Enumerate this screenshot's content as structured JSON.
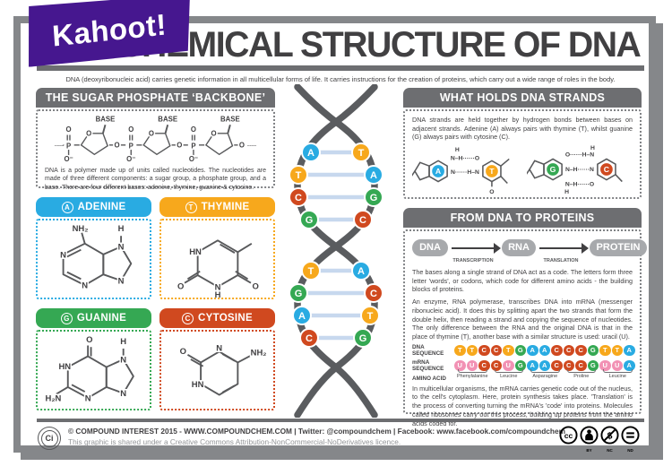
{
  "page": {
    "title": "THE CHEMICAL STRUCTURE OF DNA",
    "subtitle": "DNA (deoxyribonucleic acid) carries genetic information in all multicellular forms of life. It carries instructions for the creation of proteins, which carry out a wide range of roles in the body.",
    "kahoot_logo": "Kahoot!"
  },
  "colors": {
    "adenine": "#29ABE2",
    "thymine": "#F7A81C",
    "guanine": "#35A853",
    "cytosine": "#D0491F",
    "uracil": "#F291B4",
    "header_gray": "#6D6E71",
    "strand_gray": "#5A5C5F",
    "kahoot_purple": "#46178F"
  },
  "backbone": {
    "title": "THE SUGAR PHOSPHATE ‘BACKBONE’",
    "base_label": "BASE",
    "atom_p": "P",
    "atom_o": "O",
    "atom_o_minus": "O⁻",
    "dots": "·····",
    "description": "DNA is a polymer made up of units called nucleotides. The nucleotides are made of three different components: a sugar group, a phosphate group, and a base. There are four different bases: adenine, thymine, guanine & cytosine."
  },
  "bases": {
    "adenine": {
      "letter": "A",
      "name": "ADENINE",
      "atoms": [
        "NH₂",
        "N",
        "N",
        "N",
        "H",
        "N"
      ]
    },
    "thymine": {
      "letter": "T",
      "name": "THYMINE",
      "atoms": [
        "HN",
        "O",
        "N",
        "H",
        "O"
      ]
    },
    "guanine": {
      "letter": "G",
      "name": "GUANINE",
      "atoms": [
        "O",
        "HN",
        "H₂N",
        "N",
        "N",
        "H",
        "N"
      ]
    },
    "cytosine": {
      "letter": "C",
      "name": "CYTOSINE",
      "atoms": [
        "O",
        "N",
        "NH₂",
        "HN"
      ]
    }
  },
  "pairing": {
    "title": "WHAT HOLDS DNA STRANDS TOGETHER?",
    "description": "DNA strands are held together by hydrogen bonds between bases on adjacent strands. Adenine (A) always pairs with thymine (T), whilst guanine (G) always pairs with cytosine (C).",
    "at_pair": {
      "left_letter": "A",
      "right_letter": "T",
      "h_top": "H",
      "bond1": "N–H······O",
      "bond2": "N······H–N",
      "oxygen": "O"
    },
    "gc_pair": {
      "left_letter": "G",
      "right_letter": "C",
      "h_top": "H",
      "bond1": "O······H–N",
      "bond2": "N–H······N",
      "bond3": "N–H······O",
      "h_bottom": "H"
    }
  },
  "helix": {
    "pairs": [
      [
        "A",
        "T"
      ],
      [
        "T",
        "A"
      ],
      [
        "C",
        "G"
      ],
      [
        "G",
        "C"
      ],
      [
        "T",
        "A"
      ],
      [
        "G",
        "C"
      ],
      [
        "A",
        "T"
      ],
      [
        "C",
        "G"
      ]
    ]
  },
  "proteins": {
    "title": "FROM DNA TO PROTEINS",
    "flow": {
      "dna": "DNA",
      "transcription": "TRANSCRIPTION",
      "rna": "RNA",
      "translation": "TRANSLATION",
      "protein": "PROTEIN"
    },
    "paragraph1": "The bases along a single strand of DNA act as a code. The letters form three letter 'words', or codons, which code for different amino acids - the building blocks of proteins.",
    "paragraph2": "An enzyme, RNA polymerase, transcribes DNA into mRNA (messenger ribonucleic acid). It does this by splitting apart the two strands that form the double helix, then reading a strand and copying the sequence of nucleotides. The only difference between the RNA and the original DNA is that in the place of thymine (T), another base with a similar structure is used: uracil (U).",
    "dna_row_label": "DNA SEQUENCE",
    "dna_sequence": [
      "T",
      "T",
      "C",
      "C",
      "T",
      "G",
      "A",
      "A",
      "C",
      "C",
      "C",
      "G",
      "T",
      "T",
      "A"
    ],
    "mrna_row_label": "mRNA SEQUENCE",
    "mrna_sequence": [
      "U",
      "U",
      "C",
      "C",
      "U",
      "G",
      "A",
      "A",
      "C",
      "C",
      "C",
      "G",
      "U",
      "U",
      "A"
    ],
    "amino_row_label": "AMINO ACID",
    "amino_acids": [
      "Phenylalanine",
      "Leucine",
      "Asparagine",
      "Proline",
      "Leucine"
    ],
    "paragraph3": "In multicellular organisms, the mRNA carries genetic code out of the nucleus, to the cell's cytoplasm. Here, protein synthesis takes place. 'Translation' is the process of converting turning the mRNA's 'code' into proteins. Molecules called ribosomes carry out this process, building up proteins from the amino acids coded for."
  },
  "footer": {
    "logo_text": "Ci",
    "line1": "© COMPOUND INTEREST 2015 - WWW.COMPOUNDCHEM.COM | Twitter: @compoundchem | Facebook: www.facebook.com/compoundchem",
    "line2": "This graphic is shared under a Creative Commons Attribution-NonCommercial-NoDerivatives licence.",
    "cc_labels": [
      "BY",
      "NC",
      "ND"
    ]
  }
}
